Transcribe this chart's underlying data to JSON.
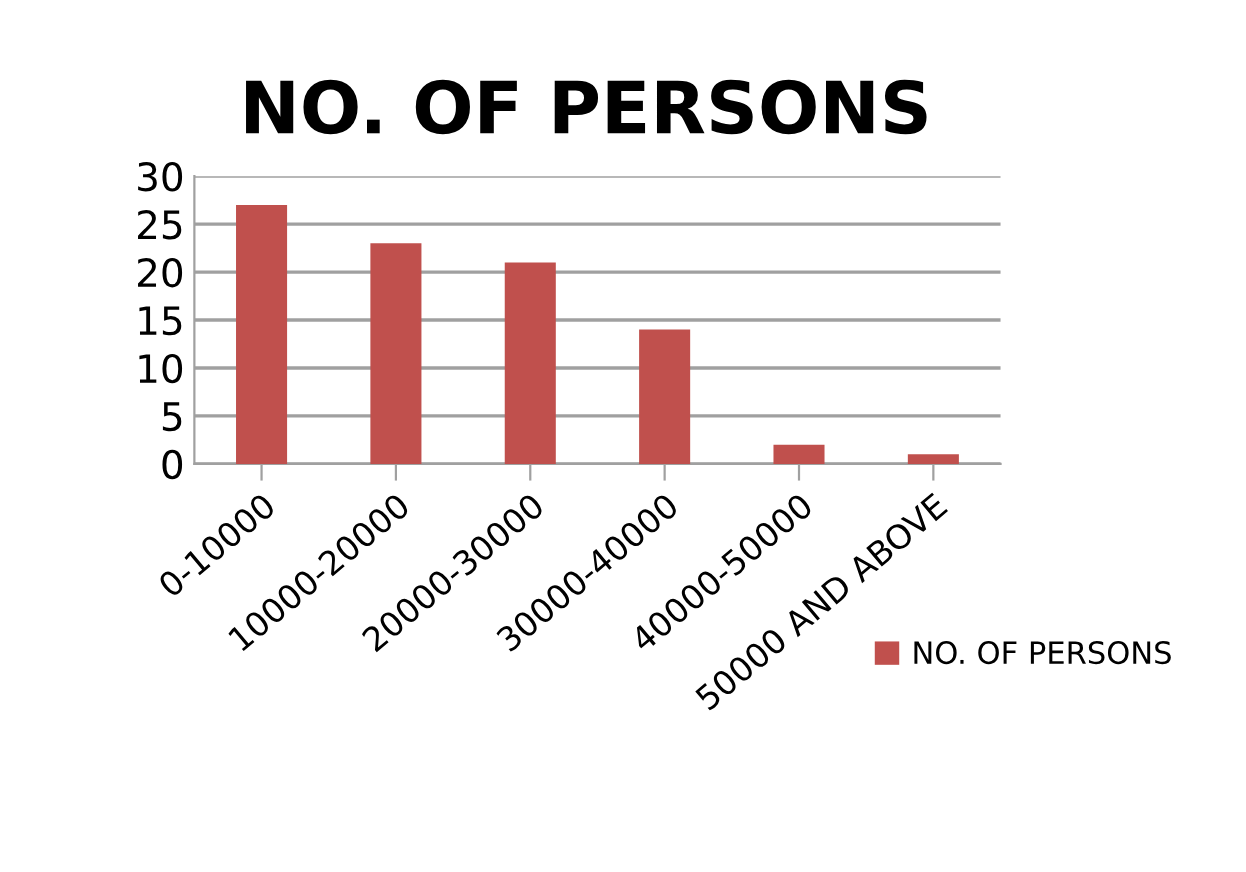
{
  "chart_data": {
    "type": "bar",
    "title": "NO. OF PERSONS",
    "categories": [
      "0-10000",
      "10000-20000",
      "20000-30000",
      "30000-40000",
      "40000-50000",
      "50000 AND ABOVE"
    ],
    "series": [
      {
        "name": "NO. OF PERSONS",
        "color": "#c0504d",
        "values": [
          27,
          23,
          21,
          14,
          2,
          1
        ]
      }
    ],
    "ylim": [
      0,
      30
    ],
    "yticks": [
      0,
      5,
      10,
      15,
      20,
      25,
      30
    ],
    "grid": "y",
    "legend": "bottom right"
  }
}
